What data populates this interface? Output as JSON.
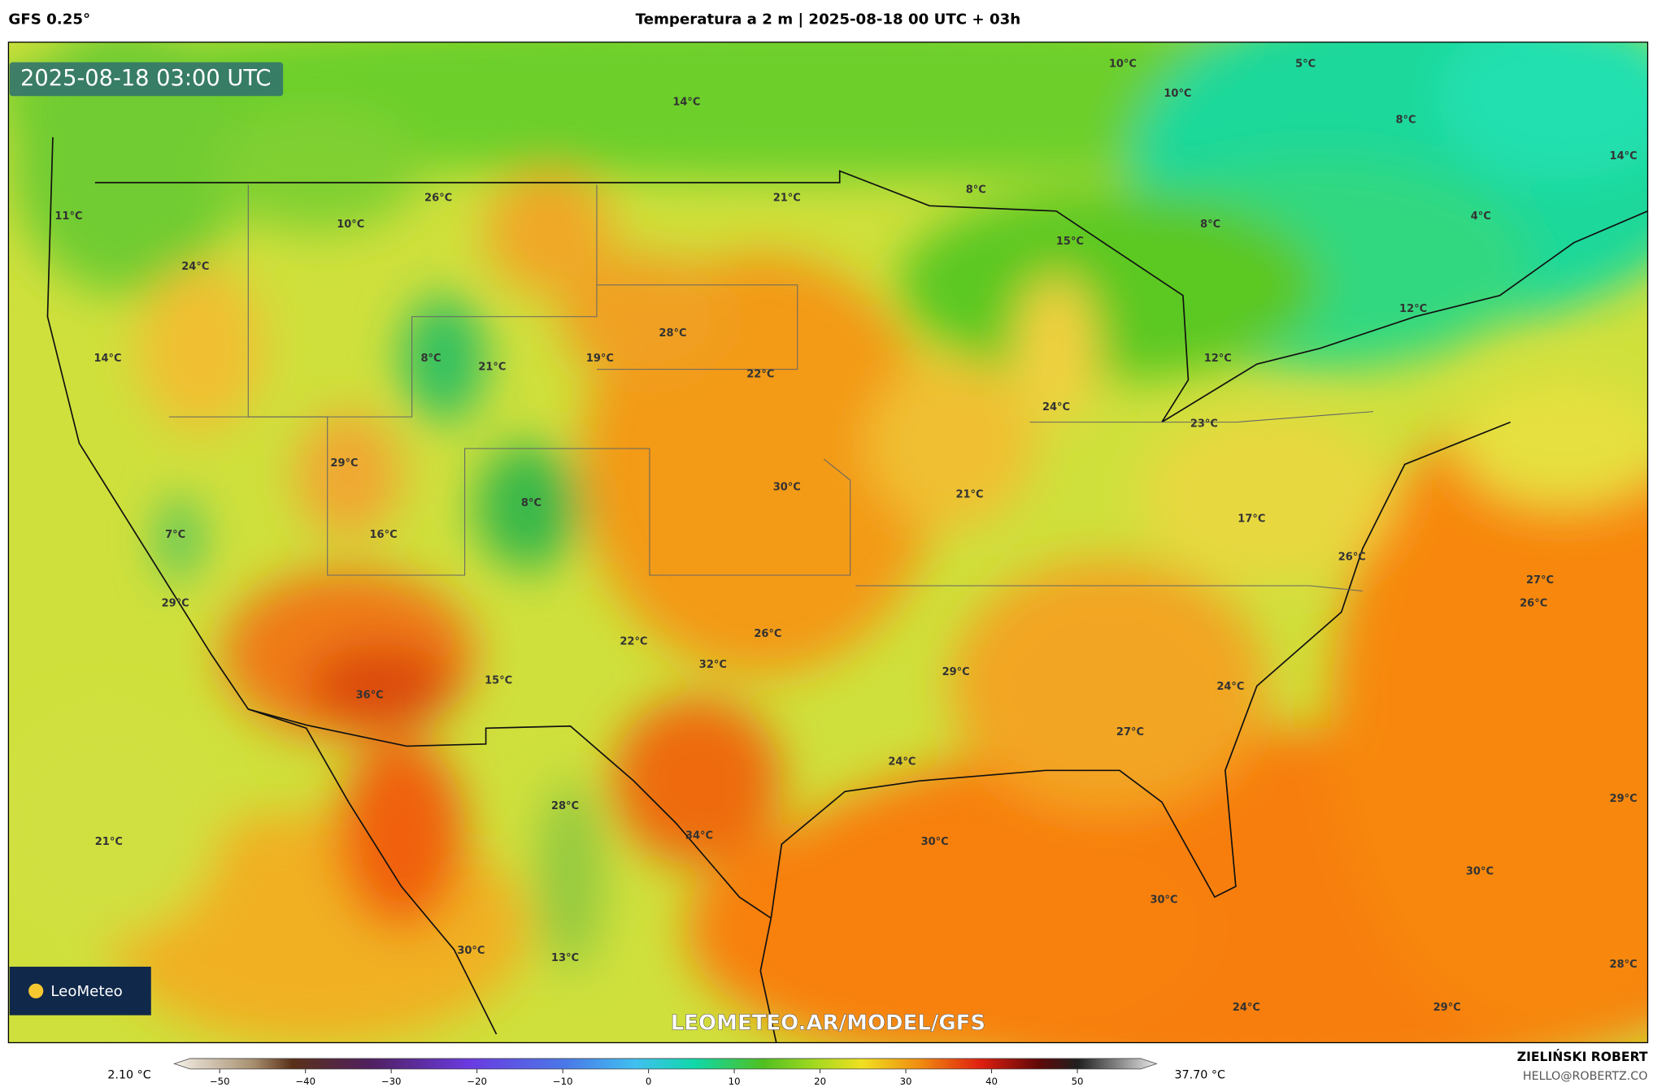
{
  "header": {
    "model": "GFS 0.25°",
    "title": "Temperatura a 2 m | 2025-08-18 00 UTC + 03h"
  },
  "timestamp": "2025-08-18 03:00 UTC",
  "logo": "LeoMeteo",
  "watermark": "LEOMETEO.AR/MODEL/GFS",
  "map_labels": [
    "10°C",
    "5°C",
    "10°C",
    "14°C",
    "8°C",
    "14°C",
    "8°C",
    "26°C",
    "21°C",
    "11°C",
    "4°C",
    "10°C",
    "8°C",
    "15°C",
    "24°C",
    "12°C",
    "28°C",
    "14°C",
    "8°C",
    "21°C",
    "19°C",
    "12°C",
    "22°C",
    "24°C",
    "23°C",
    "29°C",
    "30°C",
    "21°C",
    "8°C",
    "17°C",
    "7°C",
    "16°C",
    "26°C",
    "27°C",
    "29°C",
    "26°C",
    "22°C",
    "26°C",
    "32°C",
    "29°C",
    "15°C",
    "36°C",
    "24°C",
    "27°C",
    "24°C",
    "28°C",
    "29°C",
    "34°C",
    "21°C",
    "30°C",
    "30°C",
    "30°C",
    "30°C",
    "13°C",
    "28°C",
    "24°C",
    "29°C"
  ],
  "colorbar": {
    "min_label": "2.10 °C",
    "max_label": "37.70 °C",
    "ticks": [
      {
        "value": -50,
        "label": "−50"
      },
      {
        "value": -40,
        "label": "−40"
      },
      {
        "value": -30,
        "label": "−30"
      },
      {
        "value": -20,
        "label": "−20"
      },
      {
        "value": -10,
        "label": "−10"
      },
      0,
      10,
      20,
      30,
      40,
      50
    ]
  },
  "credits": {
    "author": "ZIELIŃSKI ROBERT",
    "email": "HELLO@ROBERTZ.CO"
  }
}
